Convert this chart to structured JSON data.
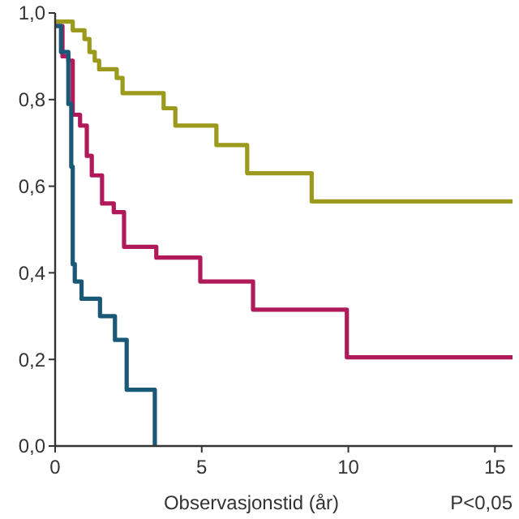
{
  "chart_data": {
    "type": "step",
    "xlabel": "Observasjonstid (år)",
    "annotations": [
      "P<0,05"
    ],
    "xlim": [
      0,
      15.6
    ],
    "ylim": [
      0,
      1
    ],
    "xticks": [
      0,
      5,
      10,
      15
    ],
    "yticks": [
      {
        "value": 0,
        "label": "0,0"
      },
      {
        "value": 0.2,
        "label": "0,2"
      },
      {
        "value": 0.4,
        "label": "0,4"
      },
      {
        "value": 0.6,
        "label": "0,6"
      },
      {
        "value": 0.8,
        "label": "0,8"
      },
      {
        "value": 1,
        "label": "1,0"
      }
    ],
    "grid": false,
    "series": [
      {
        "color": "#9c9a1c",
        "x": [
          0,
          0.6,
          1.0,
          1.17,
          1.35,
          1.5,
          2.1,
          2.3,
          3.7,
          4.1,
          5.5,
          6.55,
          8.75,
          15.6
        ],
        "values": [
          0.98,
          0.96,
          0.94,
          0.91,
          0.89,
          0.87,
          0.85,
          0.815,
          0.78,
          0.74,
          0.695,
          0.63,
          0.565,
          0.565
        ]
      },
      {
        "color": "#b01a5a",
        "x": [
          0,
          0.25,
          0.45,
          0.6,
          0.85,
          1.08,
          1.25,
          1.6,
          2.0,
          2.35,
          3.45,
          4.95,
          6.75,
          9.95,
          15.6
        ],
        "values": [
          0.97,
          0.9,
          0.89,
          0.765,
          0.74,
          0.67,
          0.625,
          0.56,
          0.54,
          0.46,
          0.435,
          0.38,
          0.315,
          0.205,
          0.205
        ]
      },
      {
        "color": "#1a5878",
        "x": [
          0,
          0.2,
          0.45,
          0.55,
          0.6,
          0.67,
          0.9,
          1.53,
          2.04,
          2.44,
          3.4
        ],
        "values": [
          0.97,
          0.91,
          0.79,
          0.645,
          0.42,
          0.38,
          0.34,
          0.3,
          0.245,
          0.13,
          0
        ]
      }
    ]
  }
}
